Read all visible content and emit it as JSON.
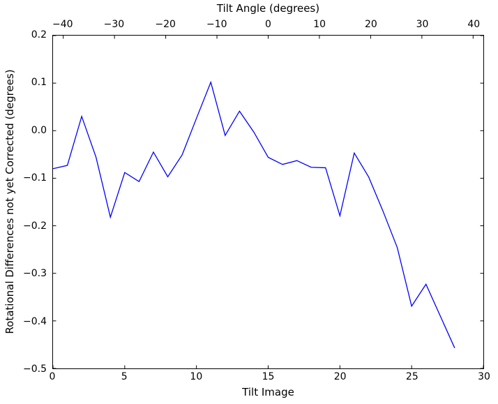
{
  "chart_data": {
    "type": "line",
    "title": "Tilt Angle (degrees)",
    "xlabel": "Tilt Image",
    "ylabel": "Rotational Differences not yet Corrected (degrees)",
    "xlim": [
      0,
      30
    ],
    "ylim": [
      -0.5,
      0.2
    ],
    "grid": false,
    "legend": null,
    "line_color": "#0000ff",
    "axis_color": "#000000",
    "background_color": "#ffffff",
    "x": [
      0,
      1,
      2,
      3,
      4,
      5,
      6,
      7,
      8,
      9,
      10,
      11,
      12,
      13,
      14,
      15,
      16,
      17,
      18,
      19,
      20,
      21,
      22,
      23,
      24,
      25,
      26,
      27,
      28
    ],
    "y": [
      -0.08,
      -0.073,
      0.03,
      -0.056,
      -0.182,
      -0.088,
      -0.107,
      -0.045,
      -0.097,
      -0.051,
      0.026,
      0.102,
      -0.01,
      0.041,
      -0.003,
      -0.056,
      -0.071,
      -0.063,
      -0.077,
      -0.078,
      -0.179,
      -0.047,
      -0.097,
      -0.169,
      -0.246,
      -0.369,
      -0.323,
      -0.39,
      -0.457
    ],
    "x_ticks": {
      "values": [
        0,
        5,
        10,
        15,
        20,
        25,
        30
      ],
      "labels": [
        "0",
        "5",
        "10",
        "15",
        "20",
        "25",
        "30"
      ]
    },
    "y_ticks": {
      "values": [
        0.2,
        0.1,
        0.0,
        -0.1,
        -0.2,
        -0.3,
        -0.4,
        -0.5
      ],
      "labels": [
        "0.2",
        "0.1",
        "0.0",
        "−0.1",
        "−0.2",
        "−0.3",
        "−0.4",
        "−0.5"
      ]
    },
    "top_axis": {
      "label": "Tilt Angle (degrees)",
      "lim": [
        -42,
        42
      ],
      "tick_values": [
        -40,
        -30,
        -20,
        -10,
        0,
        10,
        20,
        30,
        40
      ],
      "tick_labels": [
        "−40",
        "−30",
        "−20",
        "−10",
        "0",
        "10",
        "20",
        "30",
        "40"
      ]
    }
  }
}
